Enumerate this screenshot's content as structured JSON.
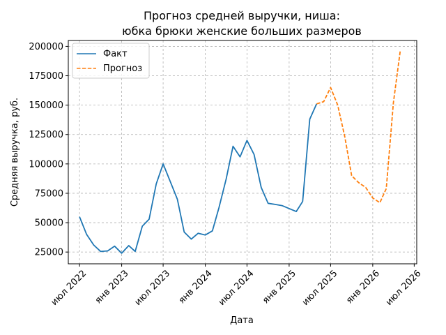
{
  "chart_data": {
    "type": "line",
    "title": [
      "Прогноз средней выручки, ниша:",
      "юбка брюки женские больших размеров"
    ],
    "xlabel": "Дата",
    "ylabel": "Средняя выручка, руб.",
    "xlim": [
      "2022-05-13",
      "2026-07-12"
    ],
    "ylim": [
      15000,
      205000
    ],
    "grid": true,
    "legend_position": "top-left",
    "x_ticks": [
      {
        "date": "2022-07-01",
        "label": "июл 2022"
      },
      {
        "date": "2023-01-01",
        "label": "янв 2023"
      },
      {
        "date": "2023-07-01",
        "label": "июл 2023"
      },
      {
        "date": "2024-01-01",
        "label": "янв 2024"
      },
      {
        "date": "2024-07-01",
        "label": "июл 2024"
      },
      {
        "date": "2025-01-01",
        "label": "янв 2025"
      },
      {
        "date": "2025-07-01",
        "label": "июл 2025"
      },
      {
        "date": "2026-01-01",
        "label": "янв 2026"
      },
      {
        "date": "2026-07-01",
        "label": "июл 2026"
      }
    ],
    "y_ticks": [
      {
        "value": 25000,
        "label": "25000"
      },
      {
        "value": 50000,
        "label": "50000"
      },
      {
        "value": 75000,
        "label": "75000"
      },
      {
        "value": 100000,
        "label": "100000"
      },
      {
        "value": 125000,
        "label": "125000"
      },
      {
        "value": 150000,
        "label": "150000"
      },
      {
        "value": 175000,
        "label": "175000"
      },
      {
        "value": 200000,
        "label": "200000"
      }
    ],
    "series": [
      {
        "name": "Факт",
        "color": "#1f77b4",
        "style": "solid",
        "x": [
          "2022-07-01",
          "2022-08-01",
          "2022-09-01",
          "2022-10-01",
          "2022-11-01",
          "2022-12-01",
          "2023-01-01",
          "2023-02-01",
          "2023-03-01",
          "2023-04-01",
          "2023-05-01",
          "2023-06-01",
          "2023-07-01",
          "2023-08-01",
          "2023-09-01",
          "2023-10-01",
          "2023-11-01",
          "2023-12-01",
          "2024-01-01",
          "2024-02-01",
          "2024-03-01",
          "2024-04-01",
          "2024-05-01",
          "2024-06-01",
          "2024-07-01",
          "2024-08-01",
          "2024-09-01",
          "2024-10-01",
          "2024-11-01",
          "2024-12-01",
          "2025-01-01",
          "2025-02-01",
          "2025-03-01",
          "2025-04-01",
          "2025-05-01"
        ],
        "values": [
          55000,
          40000,
          31000,
          25500,
          26000,
          30000,
          24000,
          30500,
          25500,
          47000,
          53000,
          83000,
          100000,
          85000,
          70000,
          42000,
          36000,
          41000,
          39500,
          43000,
          63000,
          87000,
          115000,
          106000,
          120000,
          108000,
          80000,
          66500,
          65500,
          64500,
          62000,
          59500,
          68000,
          138000,
          151000
        ]
      },
      {
        "name": "Прогноз",
        "color": "#ff7f0e",
        "style": "dashed",
        "x": [
          "2025-05-01",
          "2025-06-01",
          "2025-07-01",
          "2025-08-01",
          "2025-09-01",
          "2025-10-01",
          "2025-11-01",
          "2025-12-01",
          "2026-01-01",
          "2026-02-01",
          "2026-03-01",
          "2026-04-01",
          "2026-05-01"
        ],
        "values": [
          151000,
          153000,
          165000,
          150000,
          123000,
          90000,
          84000,
          80000,
          71000,
          67000,
          79000,
          152000,
          196000
        ]
      }
    ]
  }
}
